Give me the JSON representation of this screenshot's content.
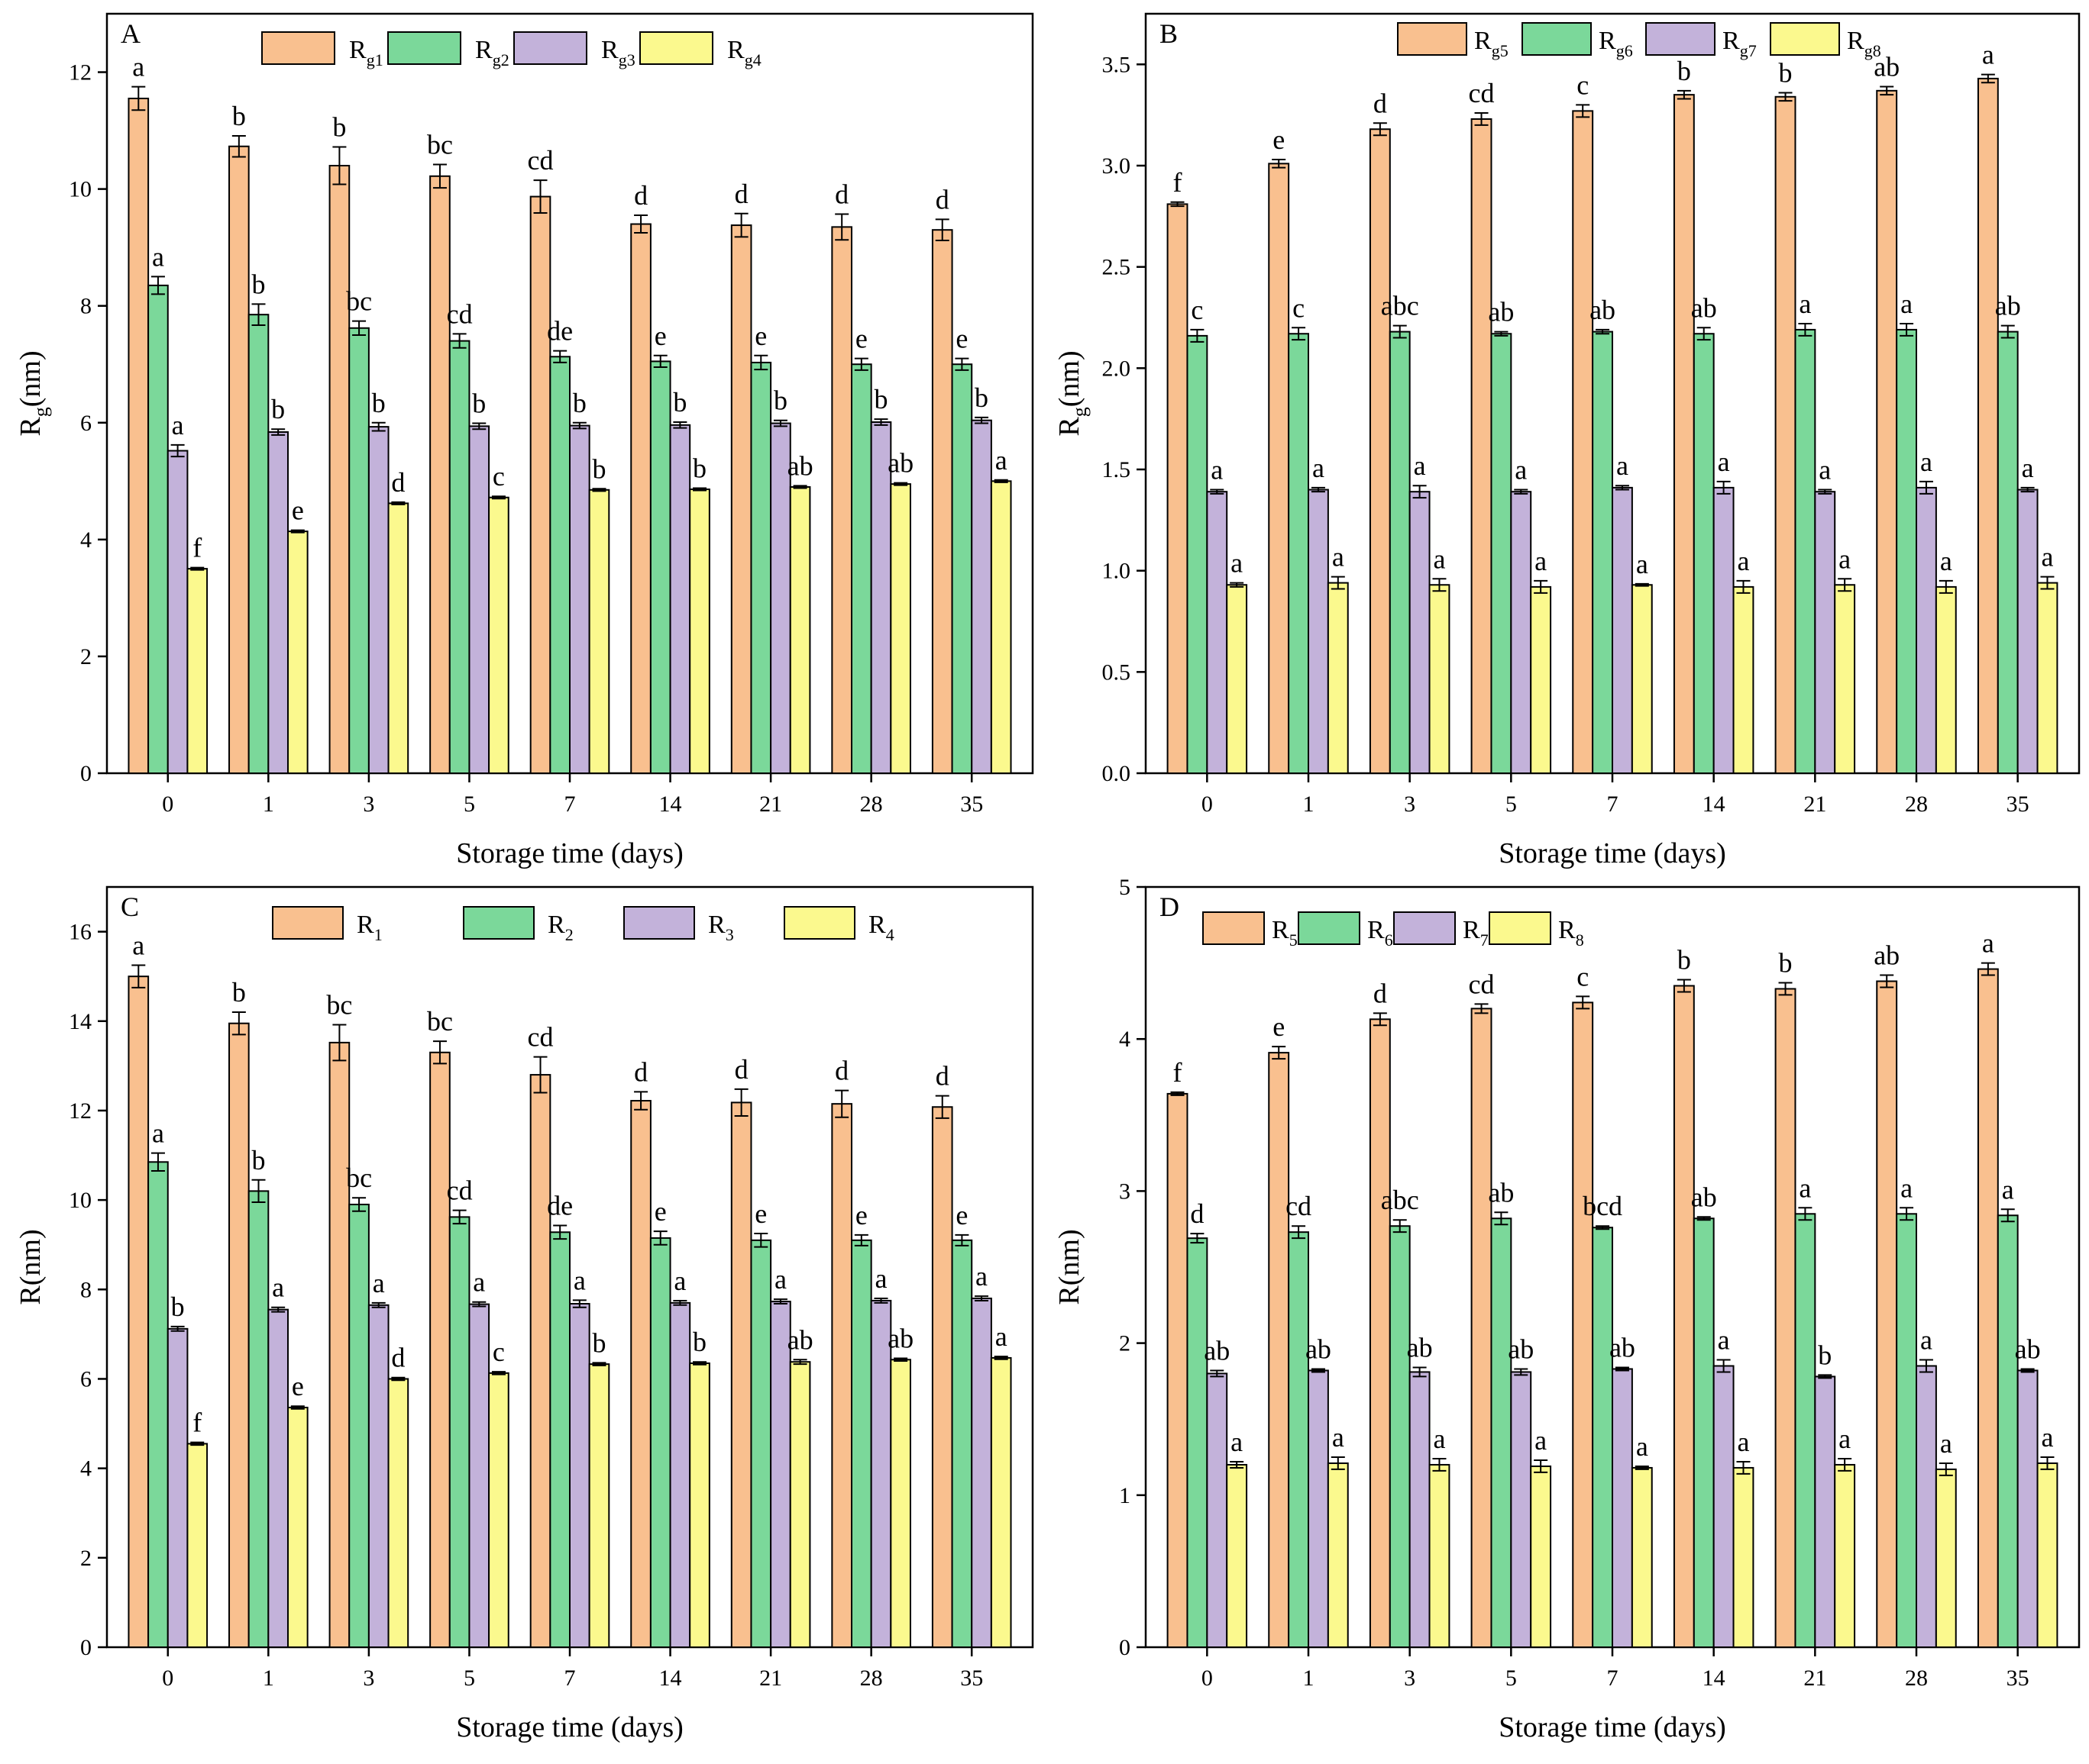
{
  "colors": {
    "series1": "#F9C08F",
    "series2": "#7BD89A",
    "series3": "#C3B2DA",
    "series4": "#FBF98E"
  },
  "chart_data": [
    {
      "panel": "A",
      "type": "bar",
      "xlabel": "Storage time (days)",
      "ylabel_main": "R",
      "ylabel_sub": "g",
      "ylabel_unit": "(nm)",
      "ylim": [
        0,
        13
      ],
      "yticks": [
        0,
        2,
        4,
        6,
        8,
        10,
        12
      ],
      "categories": [
        "0",
        "1",
        "3",
        "5",
        "7",
        "14",
        "21",
        "28",
        "35"
      ],
      "series": [
        {
          "name": "Rg1",
          "main": "R",
          "sub": "g1",
          "values": [
            11.55,
            10.73,
            10.4,
            10.22,
            9.87,
            9.4,
            9.38,
            9.35,
            9.3
          ],
          "errors": [
            0.2,
            0.18,
            0.32,
            0.2,
            0.28,
            0.15,
            0.2,
            0.22,
            0.18
          ],
          "letters": [
            "a",
            "b",
            "b",
            "bc",
            "cd",
            "d",
            "d",
            "d",
            "d"
          ]
        },
        {
          "name": "Rg2",
          "main": "R",
          "sub": "g2",
          "values": [
            8.35,
            7.85,
            7.62,
            7.4,
            7.13,
            7.05,
            7.03,
            7.0,
            7.0
          ],
          "errors": [
            0.15,
            0.18,
            0.12,
            0.12,
            0.1,
            0.1,
            0.12,
            0.1,
            0.1
          ],
          "letters": [
            "a",
            "b",
            "bc",
            "cd",
            "de",
            "e",
            "e",
            "e",
            "e"
          ]
        },
        {
          "name": "Rg3",
          "main": "R",
          "sub": "g3",
          "values": [
            5.52,
            5.84,
            5.93,
            5.94,
            5.95,
            5.96,
            5.99,
            6.01,
            6.04
          ],
          "errors": [
            0.1,
            0.05,
            0.07,
            0.05,
            0.05,
            0.05,
            0.05,
            0.05,
            0.05
          ],
          "letters": [
            "a",
            "b",
            "b",
            "b",
            "b",
            "b",
            "b",
            "b",
            "b"
          ]
        },
        {
          "name": "Rg4",
          "main": "R",
          "sub": "g4",
          "values": [
            3.5,
            4.14,
            4.62,
            4.72,
            4.85,
            4.86,
            4.9,
            4.95,
            5.0
          ],
          "errors": [
            0.02,
            0.02,
            0.02,
            0.02,
            0.02,
            0.02,
            0.02,
            0.02,
            0.02
          ],
          "letters": [
            "f",
            "e",
            "d",
            "c",
            "b",
            "b",
            "ab",
            "ab",
            "a"
          ]
        }
      ]
    },
    {
      "panel": "B",
      "type": "bar",
      "xlabel": "Storage time (days)",
      "ylabel_main": "R",
      "ylabel_sub": "g",
      "ylabel_unit": "(nm)",
      "ylim": [
        0,
        3.75
      ],
      "yticks": [
        "0.0",
        "0.5",
        "1.0",
        "1.5",
        "2.0",
        "2.5",
        "3.0",
        "3.5"
      ],
      "categories": [
        "0",
        "1",
        "3",
        "5",
        "7",
        "14",
        "21",
        "28",
        "35"
      ],
      "series": [
        {
          "name": "Rg5",
          "main": "R",
          "sub": "g5",
          "values": [
            2.81,
            3.01,
            3.18,
            3.23,
            3.27,
            3.35,
            3.34,
            3.37,
            3.43
          ],
          "errors": [
            0.01,
            0.02,
            0.03,
            0.03,
            0.03,
            0.02,
            0.02,
            0.02,
            0.02
          ],
          "letters": [
            "f",
            "e",
            "d",
            "cd",
            "c",
            "b",
            "b",
            "ab",
            "a"
          ]
        },
        {
          "name": "Rg6",
          "main": "R",
          "sub": "g6",
          "values": [
            2.16,
            2.17,
            2.18,
            2.17,
            2.18,
            2.17,
            2.19,
            2.19,
            2.18
          ],
          "errors": [
            0.03,
            0.03,
            0.03,
            0.01,
            0.01,
            0.03,
            0.03,
            0.03,
            0.03
          ],
          "letters": [
            "c",
            "c",
            "abc",
            "ab",
            "ab",
            "ab",
            "a",
            "a",
            "ab"
          ]
        },
        {
          "name": "Rg7",
          "main": "R",
          "sub": "g7",
          "values": [
            1.39,
            1.4,
            1.39,
            1.39,
            1.41,
            1.41,
            1.39,
            1.41,
            1.4
          ],
          "errors": [
            0.01,
            0.01,
            0.03,
            0.01,
            0.01,
            0.03,
            0.01,
            0.03,
            0.01
          ],
          "letters": [
            "a",
            "a",
            "a",
            "a",
            "a",
            "a",
            "a",
            "a",
            "a"
          ]
        },
        {
          "name": "Rg8",
          "main": "R",
          "sub": "g8",
          "values": [
            0.93,
            0.94,
            0.93,
            0.92,
            0.93,
            0.92,
            0.93,
            0.92,
            0.94
          ],
          "errors": [
            0.01,
            0.03,
            0.03,
            0.03,
            0.005,
            0.03,
            0.03,
            0.03,
            0.03
          ],
          "letters": [
            "a",
            "a",
            "a",
            "a",
            "a",
            "a",
            "a",
            "a",
            "a"
          ]
        }
      ]
    },
    {
      "panel": "C",
      "type": "bar",
      "xlabel": "Storage time (days)",
      "ylabel_main": "R(nm)",
      "ylabel_sub": "",
      "ylabel_unit": "",
      "ylim": [
        0,
        17
      ],
      "yticks": [
        0,
        2,
        4,
        6,
        8,
        10,
        12,
        14,
        16
      ],
      "categories": [
        "0",
        "1",
        "3",
        "5",
        "7",
        "14",
        "21",
        "28",
        "35"
      ],
      "series": [
        {
          "name": "R1",
          "main": "R",
          "sub": "1",
          "values": [
            15.0,
            13.95,
            13.52,
            13.3,
            12.8,
            12.22,
            12.18,
            12.15,
            12.08
          ],
          "errors": [
            0.25,
            0.25,
            0.4,
            0.25,
            0.4,
            0.2,
            0.3,
            0.3,
            0.25
          ],
          "letters": [
            "a",
            "b",
            "bc",
            "bc",
            "cd",
            "d",
            "d",
            "d",
            "d"
          ]
        },
        {
          "name": "R2",
          "main": "R",
          "sub": "2",
          "values": [
            10.85,
            10.2,
            9.9,
            9.62,
            9.28,
            9.15,
            9.1,
            9.1,
            9.1
          ],
          "errors": [
            0.2,
            0.25,
            0.15,
            0.15,
            0.15,
            0.15,
            0.15,
            0.12,
            0.12
          ],
          "letters": [
            "a",
            "b",
            "bc",
            "cd",
            "de",
            "e",
            "e",
            "e",
            "e"
          ]
        },
        {
          "name": "R3",
          "main": "R",
          "sub": "3",
          "values": [
            7.12,
            7.55,
            7.65,
            7.67,
            7.68,
            7.7,
            7.73,
            7.75,
            7.8
          ],
          "errors": [
            0.05,
            0.05,
            0.05,
            0.05,
            0.08,
            0.05,
            0.05,
            0.05,
            0.05
          ],
          "letters": [
            "b",
            "a",
            "a",
            "a",
            "a",
            "a",
            "a",
            "a",
            "a"
          ]
        },
        {
          "name": "R4",
          "main": "R",
          "sub": "4",
          "values": [
            4.55,
            5.36,
            6.0,
            6.13,
            6.33,
            6.35,
            6.38,
            6.43,
            6.47
          ],
          "errors": [
            0.03,
            0.03,
            0.03,
            0.03,
            0.03,
            0.03,
            0.05,
            0.03,
            0.03
          ],
          "letters": [
            "f",
            "e",
            "d",
            "c",
            "b",
            "b",
            "ab",
            "ab",
            "a"
          ]
        }
      ]
    },
    {
      "panel": "D",
      "type": "bar",
      "xlabel": "Storage time (days)",
      "ylabel_main": "R(nm)",
      "ylabel_sub": "",
      "ylabel_unit": "",
      "ylim": [
        0,
        5
      ],
      "yticks": [
        0,
        1,
        2,
        3,
        4,
        5
      ],
      "categories": [
        "0",
        "1",
        "3",
        "5",
        "7",
        "14",
        "21",
        "28",
        "35"
      ],
      "series": [
        {
          "name": "R5",
          "main": "R",
          "sub": "5",
          "values": [
            3.64,
            3.91,
            4.13,
            4.2,
            4.24,
            4.35,
            4.33,
            4.38,
            4.46
          ],
          "errors": [
            0.01,
            0.04,
            0.04,
            0.03,
            0.04,
            0.04,
            0.04,
            0.04,
            0.04
          ],
          "letters": [
            "f",
            "e",
            "d",
            "cd",
            "c",
            "b",
            "b",
            "ab",
            "a"
          ]
        },
        {
          "name": "R6",
          "main": "R",
          "sub": "6",
          "values": [
            2.69,
            2.73,
            2.77,
            2.82,
            2.76,
            2.82,
            2.85,
            2.85,
            2.84
          ],
          "errors": [
            0.03,
            0.04,
            0.04,
            0.04,
            0.01,
            0.01,
            0.04,
            0.04,
            0.04
          ],
          "letters": [
            "d",
            "cd",
            "abc",
            "ab",
            "bcd",
            "ab",
            "a",
            "a",
            "a"
          ]
        },
        {
          "name": "R7",
          "main": "R",
          "sub": "7",
          "values": [
            1.8,
            1.82,
            1.81,
            1.81,
            1.83,
            1.85,
            1.78,
            1.85,
            1.82
          ],
          "errors": [
            0.02,
            0.01,
            0.03,
            0.02,
            0.01,
            0.04,
            0.01,
            0.04,
            0.01
          ],
          "letters": [
            "ab",
            "ab",
            "ab",
            "ab",
            "ab",
            "a",
            "b",
            "a",
            "ab"
          ]
        },
        {
          "name": "R8",
          "main": "R",
          "sub": "8",
          "values": [
            1.2,
            1.21,
            1.2,
            1.19,
            1.18,
            1.18,
            1.2,
            1.17,
            1.21
          ],
          "errors": [
            0.02,
            0.04,
            0.04,
            0.04,
            0.01,
            0.04,
            0.04,
            0.04,
            0.04
          ],
          "letters": [
            "a",
            "a",
            "a",
            "a",
            "a",
            "a",
            "a",
            "a",
            "a"
          ]
        }
      ]
    }
  ]
}
